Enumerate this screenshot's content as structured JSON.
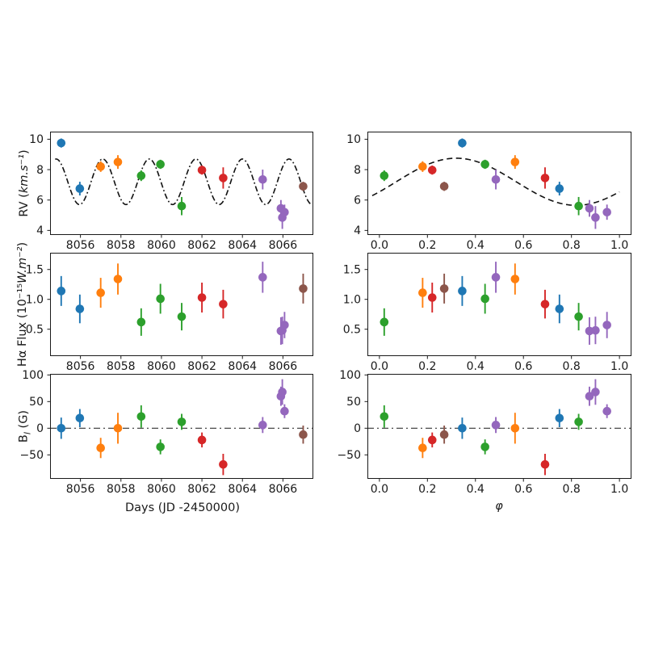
{
  "labels": {
    "rv": {
      "pre": "RV (",
      "math": "km.s⁻¹",
      "post": ")"
    },
    "ha": {
      "pre": "Hα Flux (10⁻¹⁵",
      "math": "W.m⁻²",
      "post": ")"
    },
    "bl": {
      "pre": "B",
      "sub": "l",
      "post": " (G)"
    },
    "x_time": "Days (JD -2450000)",
    "x_phase": "φ"
  },
  "chart_data": {
    "type": "scatter",
    "description": "Six-panel errorbar figure: rows RV, Halpha flux, Bl field; left column vs time (days), right column vs rotational phase",
    "grid": false,
    "palette": {
      "blue": "#1f77b4",
      "orange": "#ff7f0e",
      "green": "#2ca02c",
      "red": "#d62728",
      "purple": "#9467bd",
      "brown": "#8c564b"
    },
    "x_axes": {
      "time": {
        "field": "day",
        "lim": [
          8054.5,
          8067.5
        ],
        "ticks": [
          8056,
          8058,
          8060,
          8062,
          8064,
          8066
        ],
        "tick_labels": [
          "8056",
          "8058",
          "8060",
          "8062",
          "8064",
          "8066"
        ]
      },
      "phase": {
        "field": "phase",
        "lim": [
          -0.05,
          1.05
        ],
        "ticks": [
          0.0,
          0.2,
          0.4,
          0.6,
          0.8,
          1.0
        ],
        "tick_labels": [
          "0.0",
          "0.2",
          "0.4",
          "0.6",
          "0.8",
          "1.0"
        ]
      }
    },
    "y_rows": {
      "rv": {
        "field": "rv",
        "err_field": "rv_err",
        "lim": [
          3.7,
          10.5
        ],
        "ticks": [
          4,
          6,
          8,
          10
        ],
        "tick_labels": [
          "4",
          "6",
          "8",
          "10"
        ]
      },
      "ha": {
        "field": "ha",
        "err_field": "ha_err",
        "lim": [
          0.05,
          1.78
        ],
        "ticks": [
          0.5,
          1.0,
          1.5
        ],
        "tick_labels": [
          "0.5",
          "1.0",
          "1.5"
        ]
      },
      "bl": {
        "field": "bl",
        "err_field": "bl_err",
        "lim": [
          -95,
          102
        ],
        "ticks": [
          -50,
          0,
          50,
          100
        ],
        "tick_labels": [
          "−50",
          "0",
          "50",
          "100"
        ]
      }
    },
    "models": {
      "time": {
        "style": "dashdot",
        "mean": 7.2,
        "amp": 1.5,
        "period": 2.3,
        "x_peak": 8054.8,
        "domain": [
          8054.75,
          8067.35
        ]
      },
      "phase": {
        "style": "dashed",
        "mean": 7.2,
        "amp": 1.55,
        "period": 1.0,
        "x_peak": 0.32,
        "domain": [
          -0.03,
          1.0
        ]
      }
    },
    "panels": [
      {
        "id": "p-rv-time",
        "x_axis": "time",
        "row": "rv",
        "model": "time"
      },
      {
        "id": "p-rv-phase",
        "x_axis": "phase",
        "row": "rv",
        "model": "phase"
      },
      {
        "id": "p-ha-time",
        "x_axis": "time",
        "row": "ha"
      },
      {
        "id": "p-ha-phase",
        "x_axis": "phase",
        "row": "ha"
      },
      {
        "id": "p-bl-time",
        "x_axis": "time",
        "row": "bl",
        "hline": 0
      },
      {
        "id": "p-bl-phase",
        "x_axis": "phase",
        "row": "bl",
        "hline": 0
      }
    ],
    "points": [
      {
        "color": "blue",
        "day": 8055.05,
        "phase": 0.345,
        "rv": 9.75,
        "rv_err": 0.3,
        "ha": 1.14,
        "ha_err": 0.25,
        "bl": 0,
        "bl_err": 20
      },
      {
        "color": "blue",
        "day": 8055.97,
        "phase": 0.75,
        "rv": 6.75,
        "rv_err": 0.45,
        "ha": 0.84,
        "ha_err": 0.24,
        "bl": 19,
        "bl_err": 17
      },
      {
        "color": "orange",
        "day": 8057.0,
        "phase": 0.18,
        "rv": 8.2,
        "rv_err": 0.35,
        "ha": 1.11,
        "ha_err": 0.25,
        "bl": -37,
        "bl_err": 19
      },
      {
        "color": "orange",
        "day": 8057.85,
        "phase": 0.565,
        "rv": 8.5,
        "rv_err": 0.45,
        "ha": 1.34,
        "ha_err": 0.26,
        "bl": 0,
        "bl_err": 29
      },
      {
        "color": "green",
        "day": 8059.0,
        "phase": 0.02,
        "rv": 7.6,
        "rv_err": 0.35,
        "ha": 0.62,
        "ha_err": 0.23,
        "bl": 22,
        "bl_err": 21
      },
      {
        "color": "green",
        "day": 8059.95,
        "phase": 0.44,
        "rv": 8.35,
        "rv_err": 0.3,
        "ha": 1.01,
        "ha_err": 0.25,
        "bl": -35,
        "bl_err": 14
      },
      {
        "color": "green",
        "day": 8061.0,
        "phase": 0.83,
        "rv": 5.6,
        "rv_err": 0.6,
        "ha": 0.71,
        "ha_err": 0.23,
        "bl": 12,
        "bl_err": 15
      },
      {
        "color": "red",
        "day": 8062.0,
        "phase": 0.22,
        "rv": 7.97,
        "rv_err": 0.3,
        "ha": 1.03,
        "ha_err": 0.25,
        "bl": -22,
        "bl_err": 14
      },
      {
        "color": "red",
        "day": 8063.05,
        "phase": 0.69,
        "rv": 7.45,
        "rv_err": 0.7,
        "ha": 0.92,
        "ha_err": 0.24,
        "bl": -68,
        "bl_err": 20
      },
      {
        "color": "purple",
        "day": 8065.0,
        "phase": 0.485,
        "rv": 7.35,
        "rv_err": 0.65,
        "ha": 1.37,
        "ha_err": 0.26,
        "bl": 6,
        "bl_err": 15
      },
      {
        "color": "purple",
        "day": 8065.9,
        "phase": 0.875,
        "rv": 5.45,
        "rv_err": 0.55,
        "ha": 0.47,
        "ha_err": 0.23,
        "bl": 60,
        "bl_err": 18
      },
      {
        "color": "purple",
        "day": 8065.97,
        "phase": 0.9,
        "rv": 4.85,
        "rv_err": 0.75,
        "ha": 0.48,
        "ha_err": 0.23,
        "bl": 68,
        "bl_err": 24
      },
      {
        "color": "purple",
        "day": 8066.08,
        "phase": 0.948,
        "rv": 5.2,
        "rv_err": 0.5,
        "ha": 0.57,
        "ha_err": 0.22,
        "bl": 32,
        "bl_err": 13
      },
      {
        "color": "brown",
        "day": 8067.0,
        "phase": 0.27,
        "rv": 6.9,
        "rv_err": 0.3,
        "ha": 1.18,
        "ha_err": 0.25,
        "bl": -12,
        "bl_err": 17
      }
    ]
  }
}
